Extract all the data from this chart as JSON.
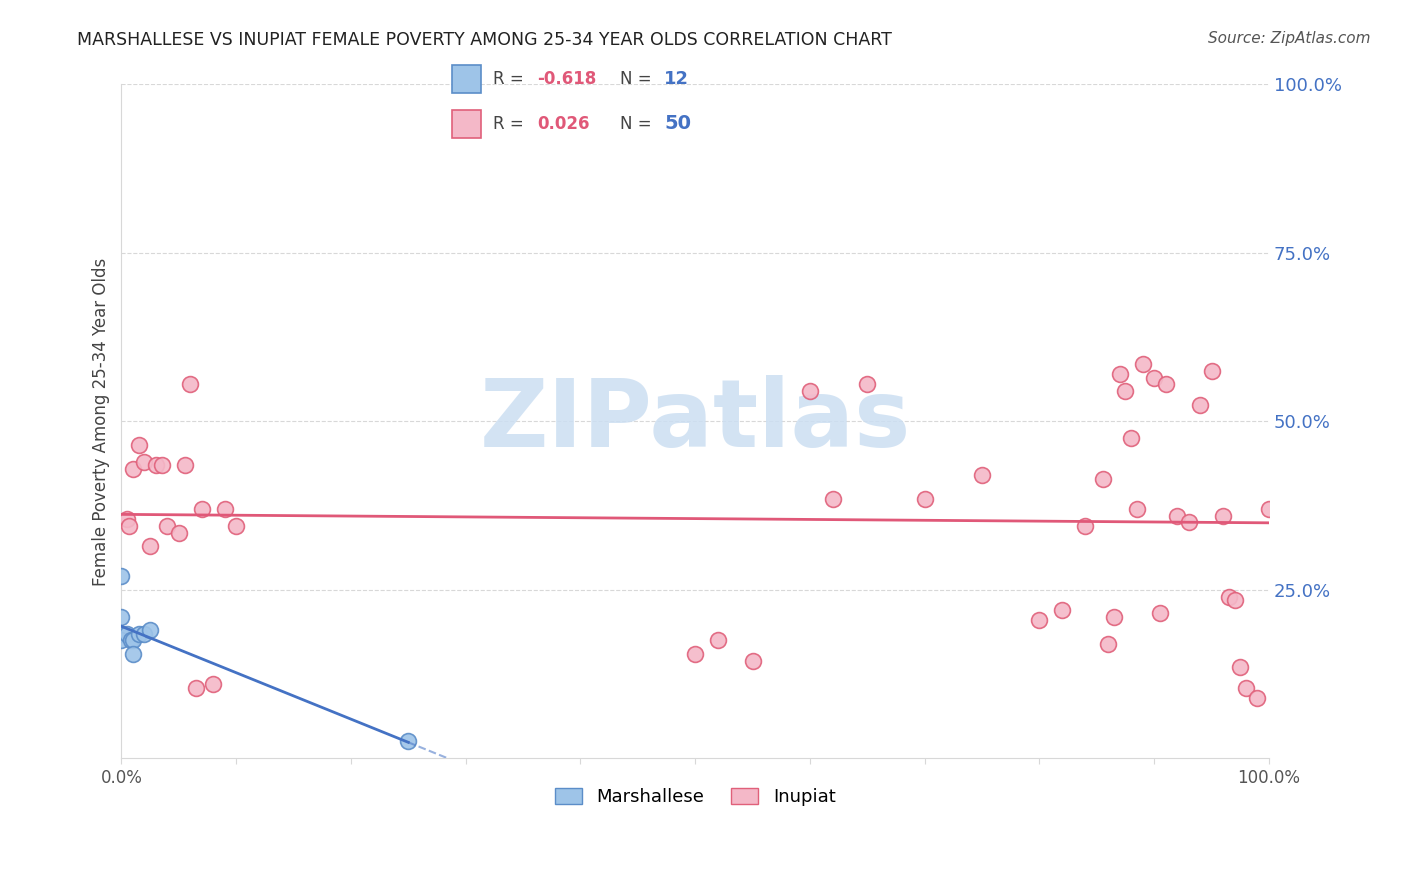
{
  "title": "MARSHALLESE VS INUPIAT FEMALE POVERTY AMONG 25-34 YEAR OLDS CORRELATION CHART",
  "source": "Source: ZipAtlas.com",
  "ylabel": "Female Poverty Among 25-34 Year Olds",
  "legend_R_marsh": "-0.618",
  "legend_N_marsh": "12",
  "legend_R_inup": "0.026",
  "legend_N_inup": "50",
  "marshallese_x": [
    0.0,
    0.0,
    0.0,
    0.0,
    0.005,
    0.008,
    0.01,
    0.01,
    0.015,
    0.02,
    0.025,
    0.25
  ],
  "marshallese_y": [
    0.27,
    0.21,
    0.185,
    0.175,
    0.185,
    0.175,
    0.175,
    0.155,
    0.185,
    0.185,
    0.19,
    0.025
  ],
  "inupiat_x": [
    0.005,
    0.007,
    0.01,
    0.015,
    0.02,
    0.025,
    0.03,
    0.035,
    0.04,
    0.05,
    0.055,
    0.06,
    0.065,
    0.07,
    0.08,
    0.09,
    0.1,
    0.5,
    0.52,
    0.55,
    0.6,
    0.62,
    0.65,
    0.7,
    0.75,
    0.8,
    0.82,
    0.84,
    0.855,
    0.86,
    0.865,
    0.87,
    0.875,
    0.88,
    0.885,
    0.89,
    0.9,
    0.905,
    0.91,
    0.92,
    0.93,
    0.94,
    0.95,
    0.96,
    0.965,
    0.97,
    0.975,
    0.98,
    0.99,
    1.0
  ],
  "inupiat_y": [
    0.355,
    0.345,
    0.43,
    0.465,
    0.44,
    0.315,
    0.435,
    0.435,
    0.345,
    0.335,
    0.435,
    0.555,
    0.105,
    0.37,
    0.11,
    0.37,
    0.345,
    0.155,
    0.175,
    0.145,
    0.545,
    0.385,
    0.555,
    0.385,
    0.42,
    0.205,
    0.22,
    0.345,
    0.415,
    0.17,
    0.21,
    0.57,
    0.545,
    0.475,
    0.37,
    0.585,
    0.565,
    0.215,
    0.555,
    0.36,
    0.35,
    0.525,
    0.575,
    0.36,
    0.24,
    0.235,
    0.135,
    0.105,
    0.09,
    0.37
  ],
  "blue_color": "#9ec4e8",
  "pink_color": "#f4b8c8",
  "blue_edge_color": "#5b8dc8",
  "pink_edge_color": "#e0607a",
  "blue_line_color": "#4472c4",
  "pink_line_color": "#e05878",
  "watermark_text": "ZIPatlas",
  "watermark_color": "#ccdff2",
  "background_color": "#ffffff",
  "grid_color": "#d8d8d8",
  "right_axis_color": "#4472c4",
  "title_color": "#222222",
  "source_color": "#555555",
  "right_ytick_labels": [
    "100.0%",
    "75.0%",
    "50.0%",
    "25.0%"
  ],
  "right_ytick_positions": [
    1.0,
    0.75,
    0.5,
    0.25
  ],
  "xlim": [
    0.0,
    1.0
  ],
  "ylim": [
    0.0,
    1.0
  ],
  "marker_size": 130
}
